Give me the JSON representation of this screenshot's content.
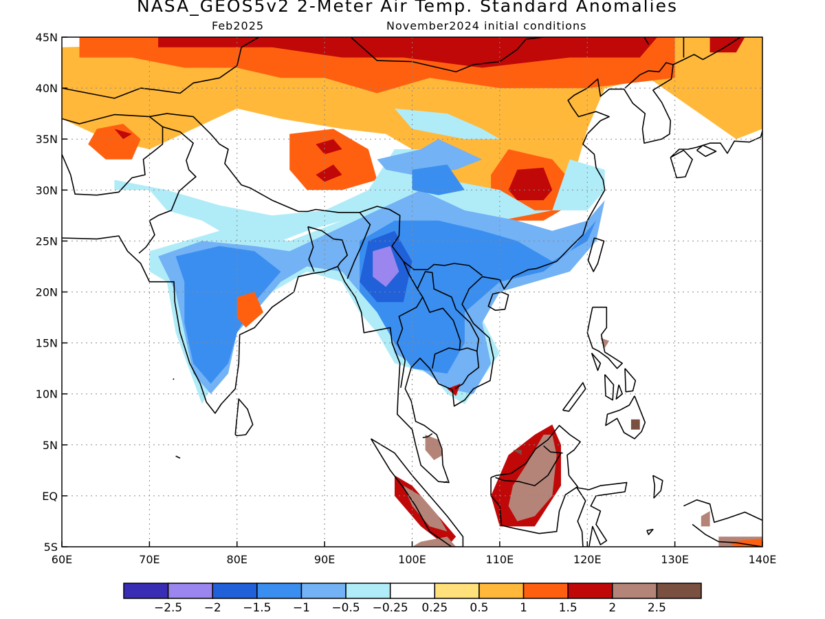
{
  "title": "NASA_GEOS5v2 2-Meter Air Temp. Standard Anomalies",
  "subtitle_left": "Feb2025",
  "subtitle_right": "November2024 initial conditions",
  "axes": {
    "x_ticks": [
      "60E",
      "70E",
      "80E",
      "90E",
      "100E",
      "110E",
      "120E",
      "130E",
      "140E"
    ],
    "x_values": [
      60,
      70,
      80,
      90,
      100,
      110,
      120,
      130,
      140
    ],
    "y_ticks": [
      "45N",
      "40N",
      "35N",
      "30N",
      "25N",
      "20N",
      "15N",
      "10N",
      "5N",
      "EQ",
      "5S"
    ],
    "y_values": [
      45,
      40,
      35,
      30,
      25,
      20,
      15,
      10,
      5,
      0,
      -5
    ],
    "lon_range": [
      60,
      140
    ],
    "lat_range": [
      -5,
      45
    ],
    "grid": "dotted"
  },
  "colorbar": {
    "colors": [
      "#3a2db5",
      "#9a86ee",
      "#2060d8",
      "#3a8ef0",
      "#72b2f5",
      "#b0ecf8",
      "#ffffff",
      "#ffe07a",
      "#ffb83a",
      "#ff6010",
      "#c00808",
      "#b48478",
      "#7a5040"
    ],
    "labels": [
      "-2.5",
      "-2",
      "-1.5",
      "-1",
      "-0.5",
      "-0.25",
      "0.25",
      "0.5",
      "1",
      "1.5",
      "2",
      "2.5"
    ]
  },
  "anomaly_regions": [
    {
      "level": 8,
      "points": [
        [
          60,
          44
        ],
        [
          100,
          45
        ],
        [
          140,
          45
        ],
        [
          140,
          36
        ],
        [
          137,
          35
        ],
        [
          132,
          38
        ],
        [
          127,
          41
        ],
        [
          122,
          40
        ],
        [
          120,
          36
        ],
        [
          118,
          30
        ],
        [
          115,
          28
        ],
        [
          106,
          30
        ],
        [
          100,
          34
        ],
        [
          97,
          35.5
        ],
        [
          92,
          36
        ],
        [
          85,
          37
        ],
        [
          80,
          38
        ],
        [
          75,
          36
        ],
        [
          70,
          34
        ],
        [
          65,
          35
        ],
        [
          60,
          37
        ]
      ]
    },
    {
      "level": 9,
      "points": [
        [
          62,
          45
        ],
        [
          100,
          45
        ],
        [
          130,
          45
        ],
        [
          130,
          41
        ],
        [
          120,
          40
        ],
        [
          110,
          40
        ],
        [
          102,
          41
        ],
        [
          96,
          39.5
        ],
        [
          90,
          41
        ],
        [
          85,
          41
        ],
        [
          80,
          42
        ],
        [
          74,
          42
        ],
        [
          68,
          43
        ],
        [
          62,
          43
        ]
      ]
    },
    {
      "level": 9,
      "points": [
        [
          111,
          34
        ],
        [
          116,
          33
        ],
        [
          118,
          31
        ],
        [
          117,
          28
        ],
        [
          115,
          27
        ],
        [
          111,
          27
        ],
        [
          109,
          29
        ],
        [
          109,
          31.5
        ]
      ]
    },
    {
      "level": 9,
      "points": [
        [
          86,
          35.5
        ],
        [
          91,
          36
        ],
        [
          95,
          34
        ],
        [
          96,
          31
        ],
        [
          92,
          30
        ],
        [
          88,
          30
        ],
        [
          86,
          32
        ]
      ]
    },
    {
      "level": 9,
      "points": [
        [
          64,
          36
        ],
        [
          67,
          36.5
        ],
        [
          69,
          35
        ],
        [
          68,
          33
        ],
        [
          65,
          33
        ],
        [
          63,
          34.5
        ]
      ]
    },
    {
      "level": 10,
      "points": [
        [
          71,
          45
        ],
        [
          105,
          45
        ],
        [
          128,
          45
        ],
        [
          126,
          43
        ],
        [
          118,
          43
        ],
        [
          108,
          42
        ],
        [
          99,
          43
        ],
        [
          92,
          43
        ],
        [
          84,
          44
        ],
        [
          76,
          44
        ],
        [
          71,
          44
        ]
      ]
    },
    {
      "level": 10,
      "points": [
        [
          112,
          32
        ],
        [
          115,
          32.2
        ],
        [
          116,
          30
        ],
        [
          115,
          29
        ],
        [
          112,
          29
        ],
        [
          111,
          30
        ]
      ]
    },
    {
      "level": 10,
      "points": [
        [
          89,
          34.5
        ],
        [
          91,
          35
        ],
        [
          92,
          34
        ],
        [
          90,
          33.5
        ]
      ]
    },
    {
      "level": 10,
      "points": [
        [
          89,
          31.5
        ],
        [
          91,
          32.5
        ],
        [
          92,
          31.5
        ],
        [
          90,
          30.8
        ]
      ]
    },
    {
      "level": 10,
      "points": [
        [
          134,
          45
        ],
        [
          138,
          45
        ],
        [
          137,
          43.5
        ],
        [
          134,
          43.5
        ]
      ]
    },
    {
      "level": 10,
      "points": [
        [
          66,
          36
        ],
        [
          68,
          35.5
        ],
        [
          67,
          35
        ]
      ]
    },
    {
      "level": 5,
      "points": [
        [
          66,
          30
        ],
        [
          70,
          30
        ],
        [
          72,
          28
        ],
        [
          76,
          27
        ],
        [
          80,
          25
        ],
        [
          85,
          25
        ],
        [
          88,
          26
        ],
        [
          92,
          27
        ],
        [
          96,
          28
        ],
        [
          100,
          30
        ],
        [
          102,
          31
        ],
        [
          102,
          34
        ],
        [
          98,
          34
        ],
        [
          95,
          30
        ],
        [
          90,
          28
        ],
        [
          84,
          27.5
        ],
        [
          78,
          28.5
        ],
        [
          72,
          30
        ],
        [
          66,
          31
        ]
      ]
    },
    {
      "level": 5,
      "points": [
        [
          70,
          24
        ],
        [
          78,
          26
        ],
        [
          86,
          25
        ],
        [
          92,
          27
        ],
        [
          96,
          29
        ],
        [
          104,
          31
        ],
        [
          110,
          30
        ],
        [
          114,
          28
        ],
        [
          120,
          28
        ],
        [
          122,
          30
        ],
        [
          122,
          32
        ],
        [
          118,
          33
        ],
        [
          116,
          28
        ],
        [
          110,
          27
        ],
        [
          104,
          25
        ],
        [
          104,
          22
        ],
        [
          107,
          19
        ],
        [
          110,
          14
        ],
        [
          106,
          9
        ],
        [
          104,
          10
        ],
        [
          102,
          12
        ],
        [
          98,
          13
        ],
        [
          96,
          16
        ],
        [
          94,
          18
        ],
        [
          92,
          21
        ],
        [
          88,
          22
        ],
        [
          84,
          20
        ],
        [
          80,
          17
        ],
        [
          78,
          12
        ],
        [
          76,
          9
        ],
        [
          73,
          16
        ],
        [
          72,
          21
        ],
        [
          70,
          22
        ]
      ]
    },
    {
      "level": 5,
      "points": [
        [
          98,
          38
        ],
        [
          104,
          37.5
        ],
        [
          108,
          36
        ],
        [
          110,
          35
        ],
        [
          106,
          35
        ],
        [
          100,
          36
        ]
      ]
    },
    {
      "level": 4,
      "points": [
        [
          71,
          23.5
        ],
        [
          76,
          25
        ],
        [
          82,
          24.5
        ],
        [
          86,
          24
        ],
        [
          91,
          26
        ],
        [
          96,
          28
        ],
        [
          101,
          30
        ],
        [
          106,
          28
        ],
        [
          112,
          27
        ],
        [
          116,
          26
        ],
        [
          120,
          27
        ],
        [
          122,
          29
        ],
        [
          121,
          25
        ],
        [
          118,
          22
        ],
        [
          114,
          21
        ],
        [
          110,
          20
        ],
        [
          108,
          17
        ],
        [
          109,
          13
        ],
        [
          107,
          10
        ],
        [
          104,
          10.5
        ],
        [
          101,
          12.5
        ],
        [
          98,
          14
        ],
        [
          97,
          18
        ],
        [
          94,
          20
        ],
        [
          92,
          22
        ],
        [
          88,
          22.5
        ],
        [
          85,
          21
        ],
        [
          82,
          18
        ],
        [
          80,
          16
        ],
        [
          79,
          12
        ],
        [
          77,
          10
        ],
        [
          75,
          12
        ],
        [
          74,
          16
        ],
        [
          73,
          20
        ]
      ]
    },
    {
      "level": 4,
      "points": [
        [
          96,
          33
        ],
        [
          101,
          34
        ],
        [
          103,
          35
        ],
        [
          108,
          33
        ],
        [
          105,
          32
        ],
        [
          100,
          31.5
        ],
        [
          97,
          32
        ]
      ]
    },
    {
      "level": 3,
      "points": [
        [
          73,
          23.5
        ],
        [
          78,
          24.5
        ],
        [
          82,
          24
        ],
        [
          85,
          22
        ],
        [
          82,
          19
        ],
        [
          80,
          16
        ],
        [
          79,
          13
        ],
        [
          77,
          11
        ],
        [
          75,
          13
        ],
        [
          74,
          17
        ],
        [
          74,
          21
        ]
      ]
    },
    {
      "level": 3,
      "points": [
        [
          94,
          25
        ],
        [
          98,
          27
        ],
        [
          103,
          27
        ],
        [
          108,
          26
        ],
        [
          112,
          25
        ],
        [
          116,
          23
        ],
        [
          120,
          25
        ],
        [
          121,
          27
        ],
        [
          118,
          24
        ],
        [
          115,
          22
        ],
        [
          110,
          21
        ],
        [
          106,
          18
        ],
        [
          106,
          15
        ],
        [
          104,
          12
        ],
        [
          100,
          12.5
        ],
        [
          98,
          15
        ],
        [
          96,
          18
        ],
        [
          94,
          20
        ]
      ]
    },
    {
      "level": 3,
      "points": [
        [
          100,
          32
        ],
        [
          104,
          32.5
        ],
        [
          106,
          30
        ],
        [
          103,
          29.5
        ],
        [
          100,
          30
        ]
      ]
    },
    {
      "level": 2,
      "points": [
        [
          95,
          25
        ],
        [
          98,
          26
        ],
        [
          100,
          23
        ],
        [
          99,
          19
        ],
        [
          96,
          19
        ],
        [
          94,
          21
        ]
      ]
    },
    {
      "level": 1,
      "points": [
        [
          95.5,
          24
        ],
        [
          97.5,
          24.5
        ],
        [
          98.5,
          22
        ],
        [
          97,
          20.5
        ],
        [
          95.5,
          21.5
        ]
      ]
    },
    {
      "level": 9,
      "points": [
        [
          80,
          19.5
        ],
        [
          82,
          20
        ],
        [
          83,
          18
        ],
        [
          81,
          16.5
        ],
        [
          80,
          17.5
        ]
      ]
    },
    {
      "level": 10,
      "points": [
        [
          111,
          4
        ],
        [
          114,
          6
        ],
        [
          116,
          7
        ],
        [
          117,
          5
        ],
        [
          117,
          1
        ],
        [
          114,
          -3
        ],
        [
          110,
          -3
        ],
        [
          109,
          0
        ],
        [
          110,
          2
        ]
      ]
    },
    {
      "level": 11,
      "points": [
        [
          111.5,
          1
        ],
        [
          113,
          3
        ],
        [
          115,
          6
        ],
        [
          116,
          6
        ],
        [
          116.5,
          4
        ],
        [
          116,
          0
        ],
        [
          114,
          -2
        ],
        [
          112,
          -2.5
        ],
        [
          111,
          -1
        ]
      ]
    },
    {
      "level": 10,
      "points": [
        [
          98,
          2
        ],
        [
          100,
          1
        ],
        [
          103,
          -2
        ],
        [
          105,
          -4
        ],
        [
          104,
          -5
        ],
        [
          101,
          -3
        ],
        [
          98,
          0
        ]
      ]
    },
    {
      "level": 11,
      "points": [
        [
          99,
          1
        ],
        [
          101,
          0
        ],
        [
          103,
          -2
        ],
        [
          104,
          -3.5
        ],
        [
          102,
          -3
        ],
        [
          100,
          -1
        ]
      ]
    },
    {
      "level": 11,
      "points": [
        [
          101.5,
          6
        ],
        [
          103,
          5.5
        ],
        [
          103.5,
          4
        ],
        [
          102.5,
          3.5
        ],
        [
          101.5,
          4.5
        ]
      ]
    },
    {
      "level": 11,
      "points": [
        [
          100,
          -5
        ],
        [
          105,
          -5
        ],
        [
          104,
          -4
        ],
        [
          101,
          -4.5
        ]
      ]
    },
    {
      "level": 11,
      "points": [
        [
          135,
          -4
        ],
        [
          140,
          -4
        ],
        [
          140,
          -5
        ],
        [
          135,
          -5
        ]
      ]
    },
    {
      "level": 9,
      "points": [
        [
          136,
          -4.5
        ],
        [
          140,
          -4.2
        ],
        [
          140,
          -5
        ],
        [
          137,
          -5
        ]
      ]
    },
    {
      "level": 11,
      "points": [
        [
          121.5,
          15.5
        ],
        [
          122.5,
          15.2
        ],
        [
          122,
          14.5
        ]
      ]
    },
    {
      "level": 12,
      "points": [
        [
          125,
          7.5
        ],
        [
          126,
          7.5
        ],
        [
          126,
          6.5
        ],
        [
          125,
          6.5
        ]
      ]
    },
    {
      "level": 12,
      "points": [
        [
          111.5,
          4.5
        ],
        [
          112.5,
          4.5
        ],
        [
          112.5,
          4
        ]
      ]
    },
    {
      "level": 11,
      "points": [
        [
          133,
          -2
        ],
        [
          134,
          -1.5
        ],
        [
          134,
          -3
        ],
        [
          133,
          -3
        ]
      ]
    },
    {
      "level": 10,
      "points": [
        [
          104,
          10.5
        ],
        [
          105.5,
          11
        ],
        [
          105,
          9.8
        ]
      ]
    }
  ]
}
